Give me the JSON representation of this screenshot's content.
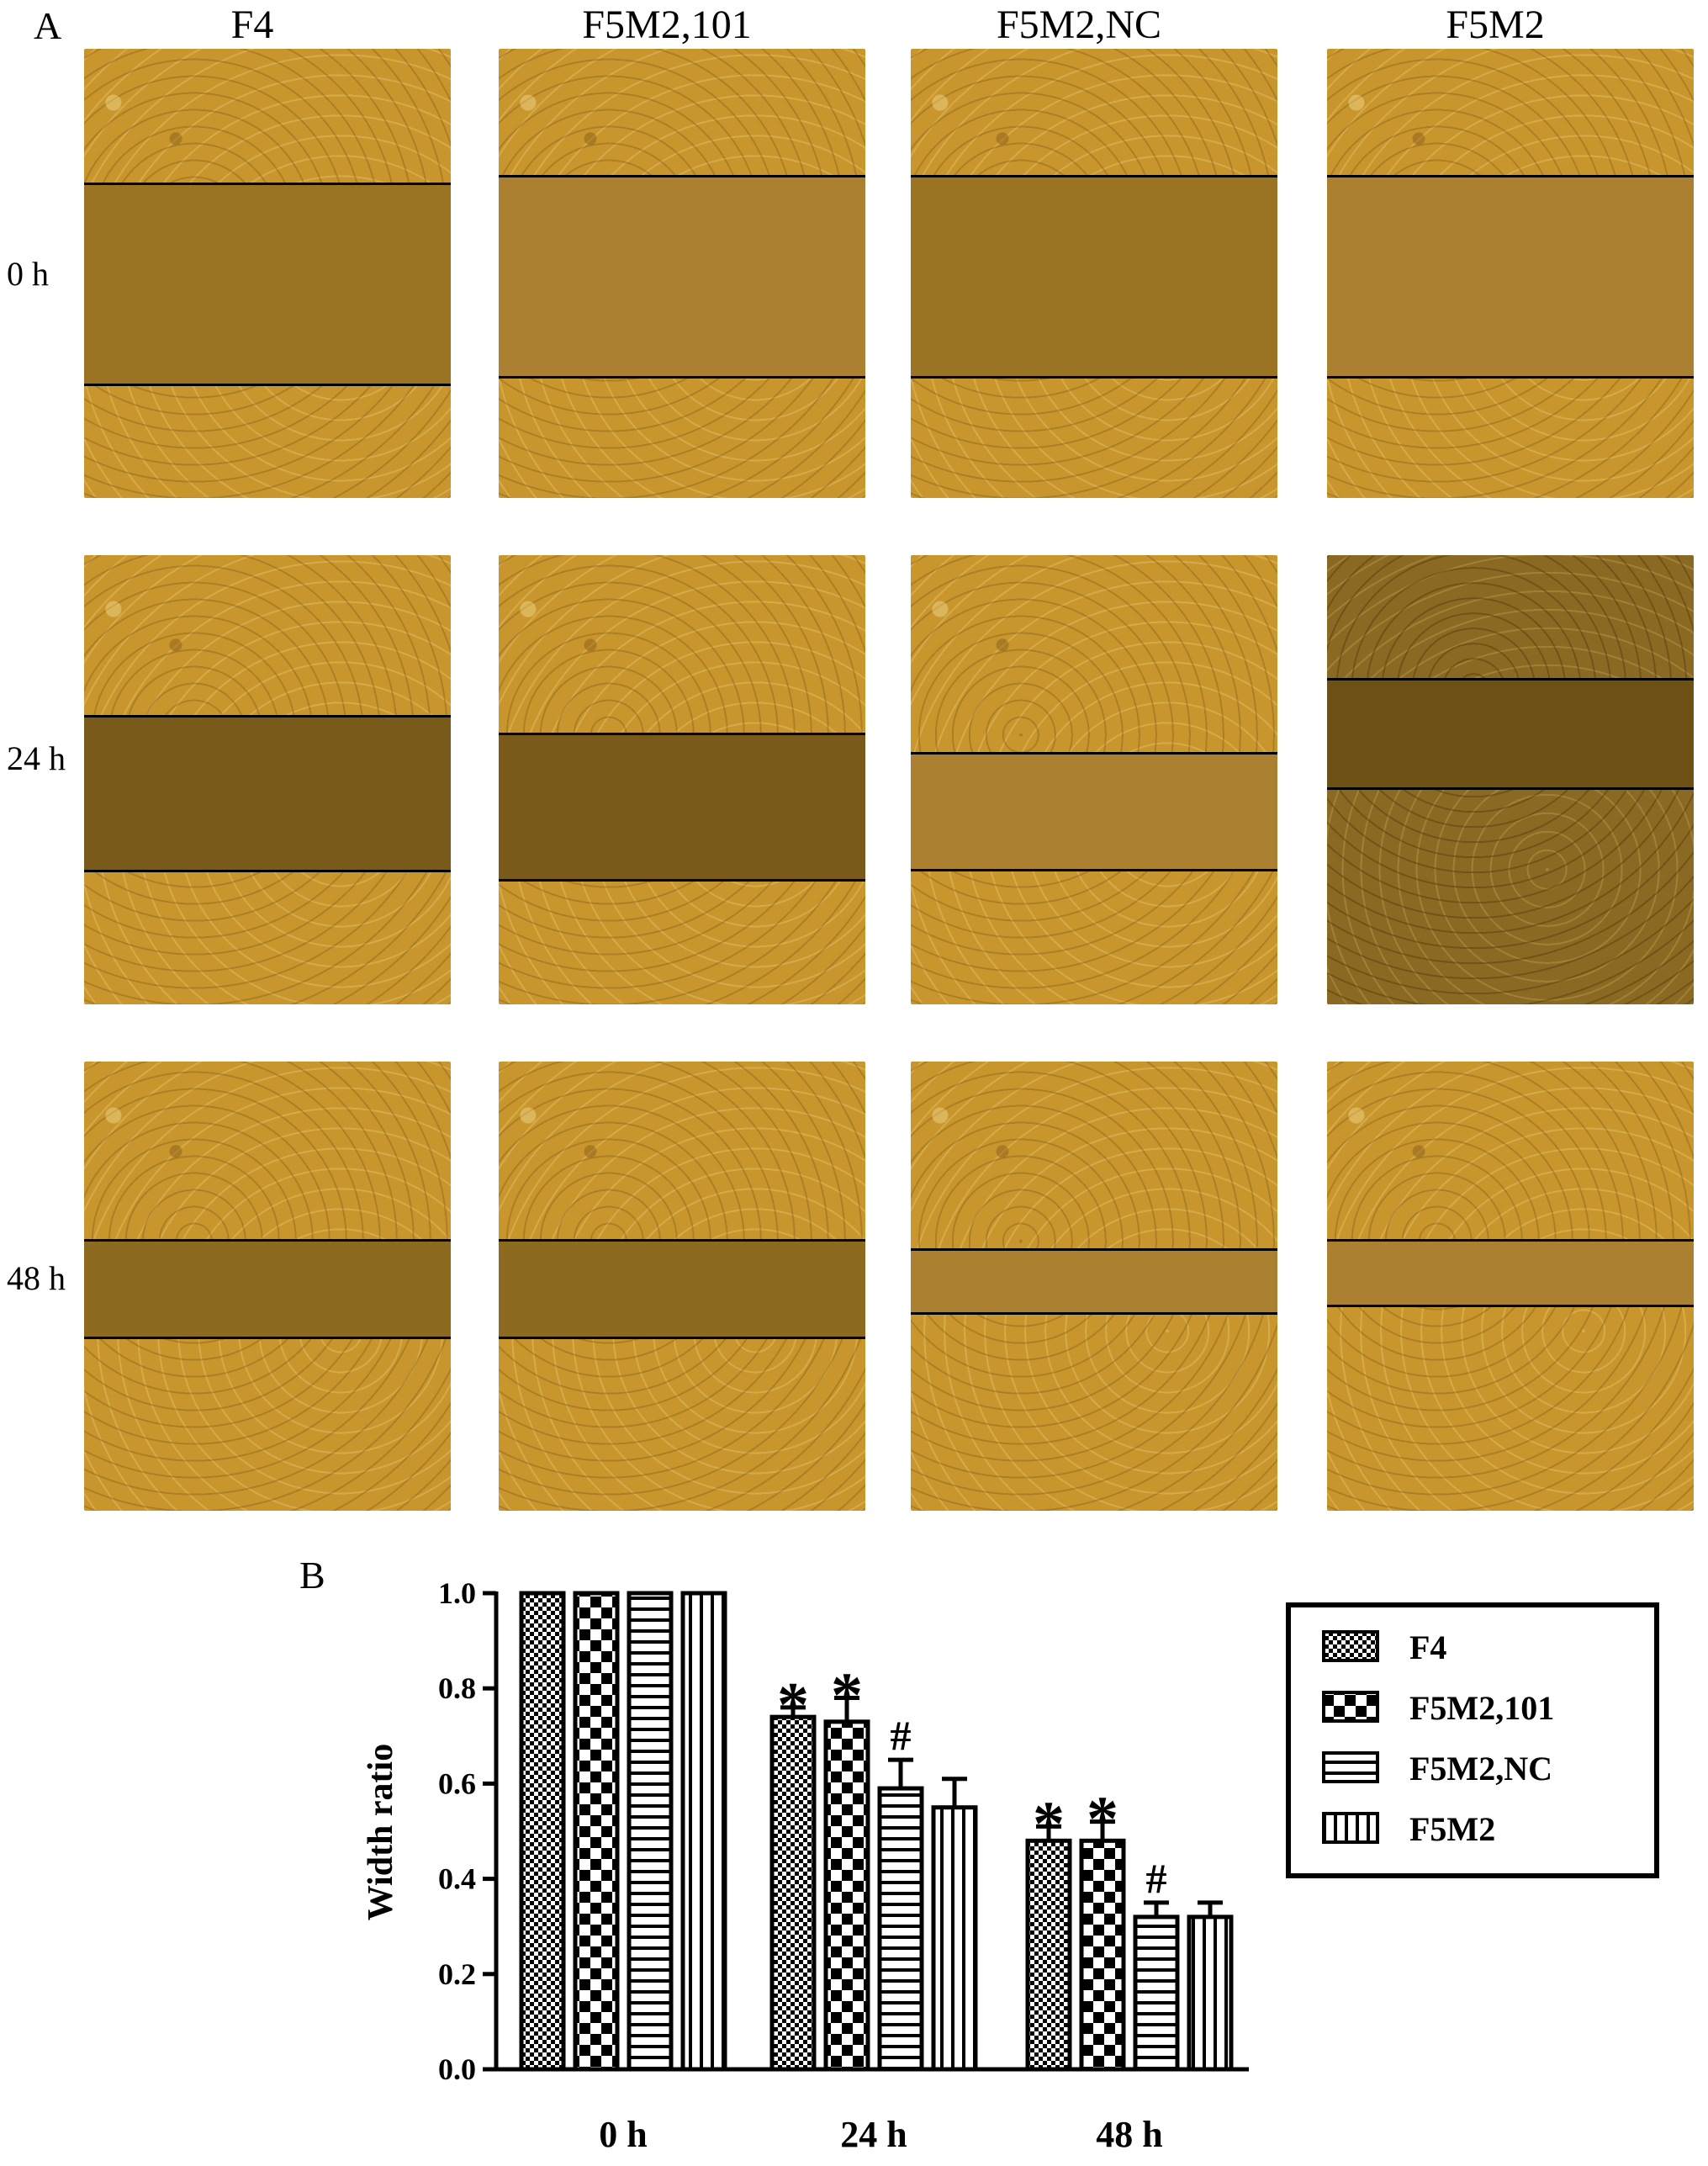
{
  "panel_a": {
    "label": "A",
    "columns": [
      "F4",
      "F5M2,101",
      "F5M2,NC",
      "F5M2"
    ],
    "rows": [
      "0 h",
      "24 h",
      "48 h"
    ]
  },
  "panel_b": {
    "label": "B"
  },
  "chart_data": {
    "type": "bar",
    "ylabel": "Width ratio",
    "xlabel": "",
    "ylim": [
      0,
      1.0
    ],
    "yticks": [
      "0.0",
      "0.2",
      "0.4",
      "0.6",
      "0.8",
      "1.0"
    ],
    "categories": [
      "0 h",
      "24 h",
      "48 h"
    ],
    "series": [
      {
        "name": "F4",
        "values": [
          1.0,
          0.74,
          0.48
        ],
        "errors": [
          0,
          0.02,
          0.03
        ],
        "annotations": [
          "",
          "*",
          "*"
        ]
      },
      {
        "name": "F5M2,101",
        "values": [
          1.0,
          0.73,
          0.48
        ],
        "errors": [
          0,
          0.05,
          0.04
        ],
        "annotations": [
          "",
          "*",
          "*"
        ]
      },
      {
        "name": "F5M2,NC",
        "values": [
          1.0,
          0.59,
          0.32
        ],
        "errors": [
          0,
          0.06,
          0.03
        ],
        "annotations": [
          "",
          "#",
          "#"
        ]
      },
      {
        "name": "F5M2",
        "values": [
          1.0,
          0.55,
          0.32
        ],
        "errors": [
          0,
          0.06,
          0.03
        ],
        "annotations": [
          "",
          "",
          ""
        ]
      }
    ],
    "legend_position": "top-right"
  }
}
